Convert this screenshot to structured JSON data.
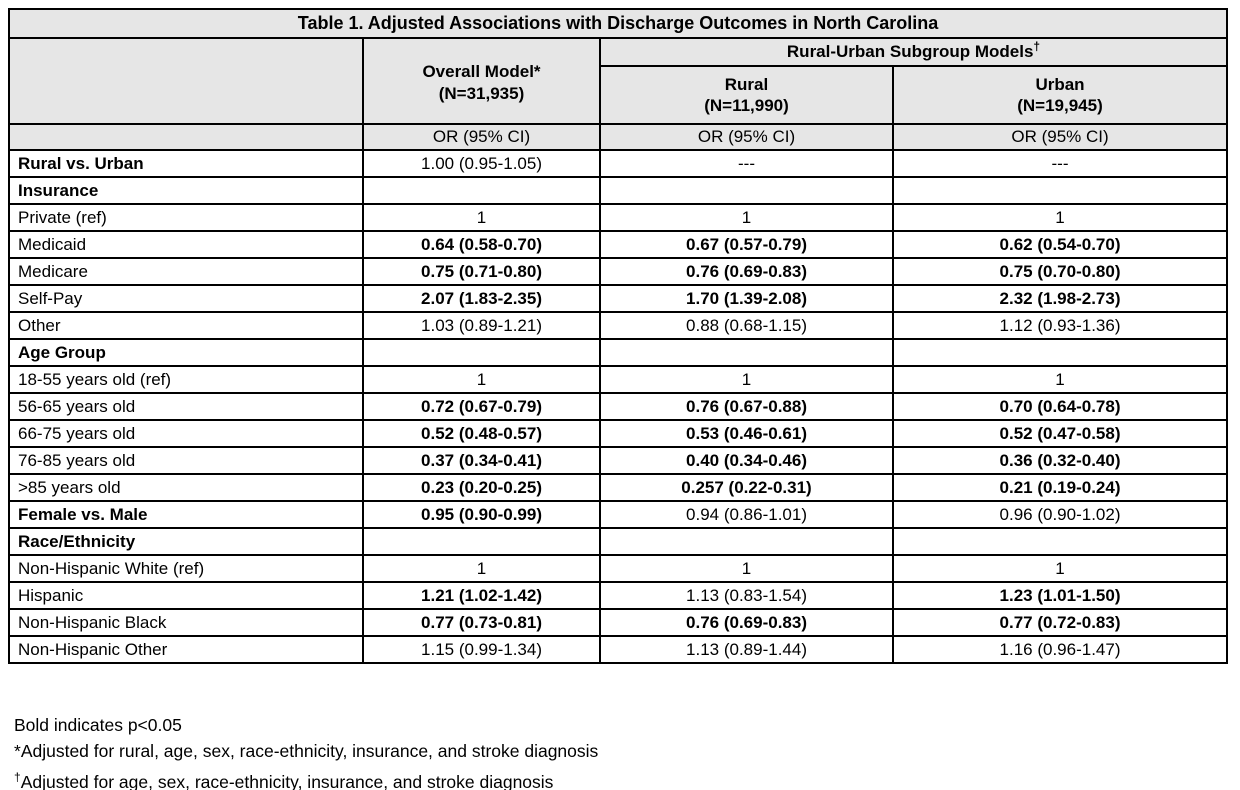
{
  "colors": {
    "header_bg": "#e6e6e6",
    "border": "#000000",
    "text": "#000000",
    "page_bg": "#ffffff"
  },
  "table": {
    "title": "Table 1. Adjusted Associations with Discharge Outcomes in North Carolina",
    "header": {
      "overall_line1": "Overall Model*",
      "overall_line2": "(N=31,935)",
      "subgroup_title": "Rural-Urban Subgroup Models",
      "subgroup_marker": "†",
      "rural_line1": "Rural",
      "rural_line2": "(N=11,990)",
      "urban_line1": "Urban",
      "urban_line2": "(N=19,945)",
      "measure_label": "OR (95% CI)"
    },
    "rows": [
      {
        "label": "Rural vs. Urban",
        "label_bold": true,
        "cells": [
          {
            "text": "1.00 (0.95-1.05)",
            "bold": false
          },
          {
            "text": "---",
            "bold": false
          },
          {
            "text": "---",
            "bold": false
          }
        ]
      },
      {
        "label": "Insurance",
        "label_bold": true,
        "cells": [
          {
            "text": "",
            "bold": false
          },
          {
            "text": "",
            "bold": false
          },
          {
            "text": "",
            "bold": false
          }
        ]
      },
      {
        "label": "Private (ref)",
        "label_bold": false,
        "cells": [
          {
            "text": "1",
            "bold": false
          },
          {
            "text": "1",
            "bold": false
          },
          {
            "text": "1",
            "bold": false
          }
        ]
      },
      {
        "label": "Medicaid",
        "label_bold": false,
        "cells": [
          {
            "text": "0.64 (0.58-0.70)",
            "bold": true
          },
          {
            "text": "0.67 (0.57-0.79)",
            "bold": true
          },
          {
            "text": "0.62 (0.54-0.70)",
            "bold": true
          }
        ]
      },
      {
        "label": "Medicare",
        "label_bold": false,
        "cells": [
          {
            "text": "0.75 (0.71-0.80)",
            "bold": true
          },
          {
            "text": "0.76 (0.69-0.83)",
            "bold": true
          },
          {
            "text": "0.75 (0.70-0.80)",
            "bold": true
          }
        ]
      },
      {
        "label": "Self-Pay",
        "label_bold": false,
        "cells": [
          {
            "text": "2.07 (1.83-2.35)",
            "bold": true
          },
          {
            "text": "1.70 (1.39-2.08)",
            "bold": true
          },
          {
            "text": "2.32 (1.98-2.73)",
            "bold": true
          }
        ]
      },
      {
        "label": "Other",
        "label_bold": false,
        "cells": [
          {
            "text": "1.03 (0.89-1.21)",
            "bold": false
          },
          {
            "text": "0.88 (0.68-1.15)",
            "bold": false
          },
          {
            "text": "1.12 (0.93-1.36)",
            "bold": false
          }
        ]
      },
      {
        "label": "Age Group",
        "label_bold": true,
        "cells": [
          {
            "text": "",
            "bold": false
          },
          {
            "text": "",
            "bold": false
          },
          {
            "text": "",
            "bold": false
          }
        ]
      },
      {
        "label": "18-55 years old (ref)",
        "label_bold": false,
        "cells": [
          {
            "text": "1",
            "bold": false
          },
          {
            "text": "1",
            "bold": false
          },
          {
            "text": "1",
            "bold": false
          }
        ]
      },
      {
        "label": "56-65 years old",
        "label_bold": false,
        "cells": [
          {
            "text": "0.72 (0.67-0.79)",
            "bold": true
          },
          {
            "text": "0.76 (0.67-0.88)",
            "bold": true
          },
          {
            "text": "0.70 (0.64-0.78)",
            "bold": true
          }
        ]
      },
      {
        "label": "66-75 years old",
        "label_bold": false,
        "cells": [
          {
            "text": "0.52 (0.48-0.57)",
            "bold": true
          },
          {
            "text": "0.53 (0.46-0.61)",
            "bold": true
          },
          {
            "text": "0.52 (0.47-0.58)",
            "bold": true
          }
        ]
      },
      {
        "label": "76-85 years old",
        "label_bold": false,
        "cells": [
          {
            "text": "0.37 (0.34-0.41)",
            "bold": true
          },
          {
            "text": "0.40 (0.34-0.46)",
            "bold": true
          },
          {
            "text": "0.36 (0.32-0.40)",
            "bold": true
          }
        ]
      },
      {
        "label": ">85 years old",
        "label_bold": false,
        "cells": [
          {
            "text": "0.23 (0.20-0.25)",
            "bold": true
          },
          {
            "text": "0.257 (0.22-0.31)",
            "bold": true
          },
          {
            "text": "0.21 (0.19-0.24)",
            "bold": true
          }
        ]
      },
      {
        "label": "Female vs. Male",
        "label_bold": true,
        "cells": [
          {
            "text": "0.95 (0.90-0.99)",
            "bold": true
          },
          {
            "text": "0.94 (0.86-1.01)",
            "bold": false
          },
          {
            "text": "0.96 (0.90-1.02)",
            "bold": false
          }
        ]
      },
      {
        "label": "Race/Ethnicity",
        "label_bold": true,
        "cells": [
          {
            "text": "",
            "bold": false
          },
          {
            "text": "",
            "bold": false
          },
          {
            "text": "",
            "bold": false
          }
        ]
      },
      {
        "label": "Non-Hispanic White (ref)",
        "label_bold": false,
        "cells": [
          {
            "text": "1",
            "bold": false
          },
          {
            "text": "1",
            "bold": false
          },
          {
            "text": "1",
            "bold": false
          }
        ]
      },
      {
        "label": "Hispanic",
        "label_bold": false,
        "cells": [
          {
            "text": "1.21 (1.02-1.42)",
            "bold": true
          },
          {
            "text": "1.13 (0.83-1.54)",
            "bold": false
          },
          {
            "text": "1.23 (1.01-1.50)",
            "bold": true
          }
        ]
      },
      {
        "label": "Non-Hispanic Black",
        "label_bold": false,
        "cells": [
          {
            "text": "0.77 (0.73-0.81)",
            "bold": true
          },
          {
            "text": "0.76 (0.69-0.83)",
            "bold": true
          },
          {
            "text": "0.77 (0.72-0.83)",
            "bold": true
          }
        ]
      },
      {
        "label": "Non-Hispanic Other",
        "label_bold": false,
        "cells": [
          {
            "text": "1.15 (0.99-1.34)",
            "bold": false
          },
          {
            "text": "1.13 (0.89-1.44)",
            "bold": false
          },
          {
            "text": "1.16 (0.96-1.47)",
            "bold": false
          }
        ]
      }
    ],
    "footnotes": [
      {
        "marker": "",
        "text": "Bold indicates p<0.05"
      },
      {
        "marker": "*",
        "text": "Adjusted for rural, age, sex, race-ethnicity, insurance, and stroke diagnosis"
      },
      {
        "marker": "†",
        "text": "Adjusted for age, sex, race-ethnicity, insurance, and stroke diagnosis"
      }
    ]
  }
}
